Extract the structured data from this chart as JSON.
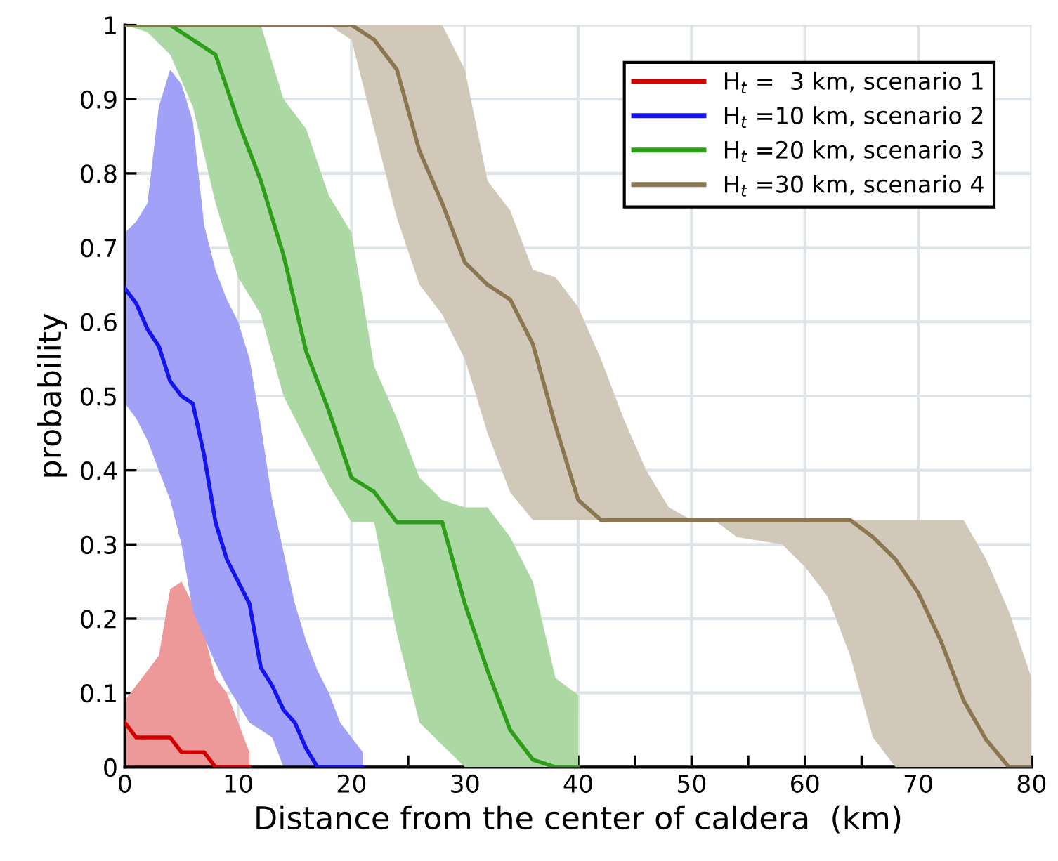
{
  "chart_data": {
    "type": "line",
    "xlabel": "Distance from the center of caldera  (km)",
    "ylabel": "probability",
    "xlim": [
      0,
      80
    ],
    "ylim": [
      0,
      1
    ],
    "xticks": [
      0,
      {
        "value": 5,
        "label": null
      },
      10,
      {
        "value": 15,
        "label": null
      },
      20,
      {
        "value": 25,
        "label": null
      },
      30,
      {
        "value": 35,
        "label": null
      },
      40,
      {
        "value": 45,
        "label": null
      },
      50,
      {
        "value": 55,
        "label": null
      },
      60,
      {
        "value": 65,
        "label": null
      },
      70,
      {
        "value": 75,
        "label": null
      },
      80
    ],
    "yticks": [
      0,
      0.1,
      0.2,
      0.3,
      0.4,
      0.5,
      0.6,
      0.7,
      0.8,
      0.9,
      1
    ],
    "grid": true,
    "legend": "top right",
    "line_style": "solid",
    "marker": "none",
    "series": [
      {
        "name": "H$_{t}$ =  3 km, scenario 1",
        "color": "#d40000",
        "x": [
          0,
          1,
          2,
          3,
          4,
          5,
          6,
          7,
          8,
          9,
          10,
          11
        ],
        "values": [
          0.06,
          0.04,
          0.04,
          0.04,
          0.04,
          0.02,
          0.02,
          0.02,
          0,
          0,
          0,
          0
        ],
        "lower": [
          0,
          0,
          0,
          0,
          0,
          0,
          0,
          0,
          0,
          0,
          0,
          0
        ],
        "upper": [
          0.09,
          0.11,
          0.13,
          0.15,
          0.24,
          0.25,
          0.22,
          0.18,
          0.12,
          0.1,
          0.06,
          0.02
        ]
      },
      {
        "name": "H$_{t}$ =10 km, scenario 2",
        "color": "#1414ee",
        "x": [
          0,
          1,
          2,
          3,
          4,
          5,
          6,
          7,
          8,
          9,
          10,
          11,
          12,
          13,
          14,
          15,
          16,
          17,
          18,
          19,
          20,
          21
        ],
        "values": [
          0.645,
          0.625,
          0.59,
          0.567,
          0.52,
          0.5,
          0.49,
          0.42,
          0.33,
          0.28,
          0.25,
          0.22,
          0.134,
          0.11,
          0.077,
          0.06,
          0.025,
          0,
          0,
          0,
          0,
          0
        ],
        "lower": [
          0.49,
          0.47,
          0.44,
          0.4,
          0.36,
          0.3,
          0.21,
          0.175,
          0.14,
          0.11,
          0.085,
          0.06,
          0.05,
          0.04,
          0,
          0,
          0,
          0,
          0,
          0,
          0,
          0
        ],
        "upper": [
          0.72,
          0.735,
          0.76,
          0.89,
          0.94,
          0.92,
          0.87,
          0.73,
          0.67,
          0.63,
          0.6,
          0.55,
          0.46,
          0.36,
          0.29,
          0.22,
          0.17,
          0.13,
          0.1,
          0.06,
          0.04,
          0.02
        ]
      },
      {
        "name": "H$_{t}$ =20 km, scenario 3",
        "color": "#2e9e1a",
        "x": [
          0,
          2,
          4,
          6,
          8,
          10,
          12,
          14,
          16,
          18,
          20,
          22,
          24,
          26,
          28,
          30,
          32,
          34,
          36,
          38,
          40
        ],
        "values": [
          1,
          1,
          1,
          0.98,
          0.96,
          0.87,
          0.79,
          0.69,
          0.56,
          0.48,
          0.39,
          0.371,
          0.33,
          0.33,
          0.33,
          0.22,
          0.13,
          0.05,
          0.01,
          0,
          0
        ],
        "lower": [
          1,
          0.99,
          0.96,
          0.89,
          0.76,
          0.66,
          0.61,
          0.5,
          0.44,
          0.38,
          0.33,
          0.33,
          0.18,
          0.06,
          0.03,
          0,
          0,
          0,
          0,
          0,
          0
        ],
        "upper": [
          1,
          1,
          1,
          1,
          1,
          1,
          1,
          0.9,
          0.86,
          0.77,
          0.72,
          0.54,
          0.47,
          0.39,
          0.36,
          0.35,
          0.35,
          0.31,
          0.25,
          0.12,
          0.097
        ]
      },
      {
        "name": "H$_{t}$ =30 km, scenario 4",
        "color": "#8b7650",
        "x": [
          0,
          2,
          4,
          6,
          8,
          10,
          12,
          14,
          16,
          18,
          20,
          22,
          24,
          26,
          28,
          30,
          32,
          34,
          36,
          38,
          40,
          42,
          44,
          46,
          48,
          50,
          52,
          54,
          56,
          58,
          60,
          62,
          64,
          66,
          68,
          70,
          72,
          74,
          76,
          78,
          80
        ],
        "values": [
          1,
          1,
          1,
          1,
          1,
          1,
          1,
          1,
          1,
          1,
          1,
          0.98,
          0.94,
          0.83,
          0.76,
          0.68,
          0.65,
          0.63,
          0.57,
          0.46,
          0.36,
          0.333,
          0.333,
          0.333,
          0.333,
          0.333,
          0.333,
          0.333,
          0.333,
          0.333,
          0.333,
          0.333,
          0.333,
          0.31,
          0.28,
          0.235,
          0.17,
          0.09,
          0.037,
          0,
          0
        ],
        "lower": [
          1,
          1,
          1,
          1,
          1,
          1,
          1,
          1,
          1,
          1,
          0.98,
          0.86,
          0.74,
          0.65,
          0.61,
          0.55,
          0.45,
          0.37,
          0.333,
          0.333,
          0.333,
          0.333,
          0.333,
          0.333,
          0.333,
          0.333,
          0.333,
          0.31,
          0.305,
          0.3,
          0.27,
          0.23,
          0.15,
          0.04,
          0,
          0,
          0,
          0,
          0,
          0,
          0
        ],
        "upper": [
          1,
          1,
          1,
          1,
          1,
          1,
          1,
          1,
          1,
          1,
          1,
          1,
          1,
          1,
          1,
          0.94,
          0.79,
          0.75,
          0.67,
          0.66,
          0.62,
          0.55,
          0.47,
          0.4,
          0.35,
          0.333,
          0.333,
          0.333,
          0.333,
          0.333,
          0.333,
          0.333,
          0.333,
          0.333,
          0.333,
          0.333,
          0.333,
          0.333,
          0.28,
          0.21,
          0.12
        ]
      }
    ]
  }
}
